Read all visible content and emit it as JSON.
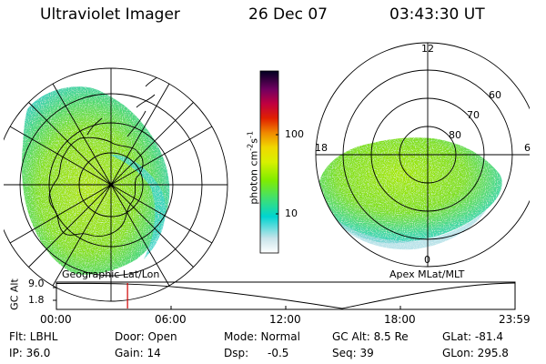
{
  "header": {
    "instrument": "Ultraviolet Imager",
    "date": "26 Dec 07",
    "time": "03:43:30 UT"
  },
  "left_map": {
    "caption": "Geographic Lat/Lon"
  },
  "right_map": {
    "caption": "Apex MLat/MLT",
    "mlt_labels": [
      "12",
      "18",
      "6",
      "0"
    ],
    "mlat_labels": [
      "60",
      "70",
      "80"
    ]
  },
  "colorbar": {
    "label": "photon cm",
    "label_sup1": "-2",
    "label_mid": "s",
    "label_sup2": "-1",
    "tick_labels": [
      "100",
      "10"
    ],
    "tick_values": [
      100,
      10
    ],
    "range": [
      2,
      800
    ],
    "log_scale": true,
    "colors": [
      "#ffffff",
      "#cfe8ec",
      "#00d8d8",
      "#30e080",
      "#60f000",
      "#c0f000",
      "#f0f000",
      "#f0d000",
      "#f08000",
      "#e02000",
      "#c00030",
      "#800060",
      "#300060",
      "#000020"
    ]
  },
  "timeline": {
    "axis_label": "GC Alt",
    "y_ticks": [
      "9.0",
      "1.8"
    ],
    "x_ticks": [
      "00:00",
      "06:00",
      "12:00",
      "18:00",
      "23:59"
    ],
    "marker_time": "03:43:30",
    "marker_fraction": 0.155,
    "colors": {
      "marker": "#d00000"
    }
  },
  "status": {
    "filter": "Flt: LBHL",
    "door": "Door: Open",
    "mode": "Mode: Normal",
    "gc_alt": "GC Alt: 8.5 Re",
    "glat": "GLat: -81.4",
    "ip": "IP: 36.0",
    "gain": "Gain: 14",
    "dsp": "Dsp:",
    "dsp_value": "-0.5",
    "seq": "Seq: 39",
    "glon": "GLon: 295.8"
  }
}
